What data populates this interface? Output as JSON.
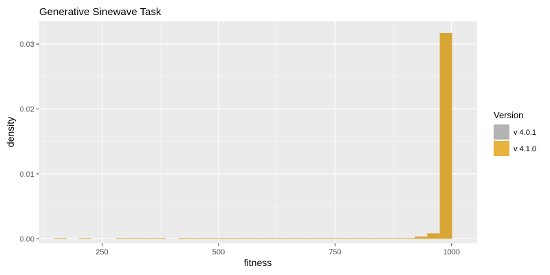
{
  "chart_data": {
    "type": "histogram",
    "title": "Generative Sinewave Task",
    "xlabel": "fitness",
    "ylabel": "density",
    "xlim": [
      115,
      1055
    ],
    "ylim": [
      -0.0007,
      0.0335
    ],
    "x_ticks": [
      250,
      500,
      750,
      1000
    ],
    "x_tick_labels": [
      "250",
      "500",
      "750",
      "1000"
    ],
    "y_ticks": [
      0.0,
      0.01,
      0.02,
      0.03
    ],
    "y_tick_labels": [
      "0.00",
      "0.01",
      "0.02",
      "0.03"
    ],
    "grid": true,
    "panel_background": "#ebebeb",
    "grid_color": "#ffffff",
    "legend": {
      "title": "Version",
      "placement": "right",
      "entries": [
        {
          "label": "v 4.0.1",
          "color": "#b3b3b3"
        },
        {
          "label": "v 4.1.0",
          "color": "#e8b33c"
        }
      ]
    },
    "series": [
      {
        "name": "v 4.0.1",
        "color": "#b3b3b3",
        "bins": []
      },
      {
        "name": "v 4.1.0",
        "color": "#d9a535",
        "bin_width": 26.7,
        "bins": [
          {
            "x0": 147.0,
            "x1": 173.7,
            "density": 2e-05
          },
          {
            "x0": 200.4,
            "x1": 227.1,
            "density": 2e-05
          },
          {
            "x0": 280.5,
            "x1": 307.2,
            "density": 2e-05
          },
          {
            "x0": 307.2,
            "x1": 333.9,
            "density": 2e-05
          },
          {
            "x0": 333.9,
            "x1": 360.6,
            "density": 2e-05
          },
          {
            "x0": 360.6,
            "x1": 387.3,
            "density": 2e-05
          },
          {
            "x0": 414.0,
            "x1": 440.7,
            "density": 2e-05
          },
          {
            "x0": 440.7,
            "x1": 467.4,
            "density": 2e-05
          },
          {
            "x0": 467.4,
            "x1": 494.1,
            "density": 2e-05
          },
          {
            "x0": 494.1,
            "x1": 520.8,
            "density": 4e-05
          },
          {
            "x0": 520.8,
            "x1": 547.5,
            "density": 2e-05
          },
          {
            "x0": 547.5,
            "x1": 574.2,
            "density": 2e-05
          },
          {
            "x0": 574.2,
            "x1": 600.9,
            "density": 2e-05
          },
          {
            "x0": 600.9,
            "x1": 627.6,
            "density": 2e-05
          },
          {
            "x0": 627.6,
            "x1": 654.3,
            "density": 2e-05
          },
          {
            "x0": 654.3,
            "x1": 681.0,
            "density": 2e-05
          },
          {
            "x0": 681.0,
            "x1": 707.7,
            "density": 2e-05
          },
          {
            "x0": 707.7,
            "x1": 734.4,
            "density": 2e-05
          },
          {
            "x0": 734.4,
            "x1": 761.1,
            "density": 4e-05
          },
          {
            "x0": 761.1,
            "x1": 787.8,
            "density": 2e-05
          },
          {
            "x0": 787.8,
            "x1": 814.5,
            "density": 4e-05
          },
          {
            "x0": 814.5,
            "x1": 841.2,
            "density": 4e-05
          },
          {
            "x0": 841.2,
            "x1": 867.9,
            "density": 4e-05
          },
          {
            "x0": 867.9,
            "x1": 894.6,
            "density": 6e-05
          },
          {
            "x0": 894.6,
            "x1": 921.3,
            "density": 0.0001
          },
          {
            "x0": 921.3,
            "x1": 948.0,
            "density": 0.00035
          },
          {
            "x0": 948.0,
            "x1": 974.7,
            "density": 0.00085
          },
          {
            "x0": 974.7,
            "x1": 1001.4,
            "density": 0.0317
          }
        ]
      }
    ]
  }
}
